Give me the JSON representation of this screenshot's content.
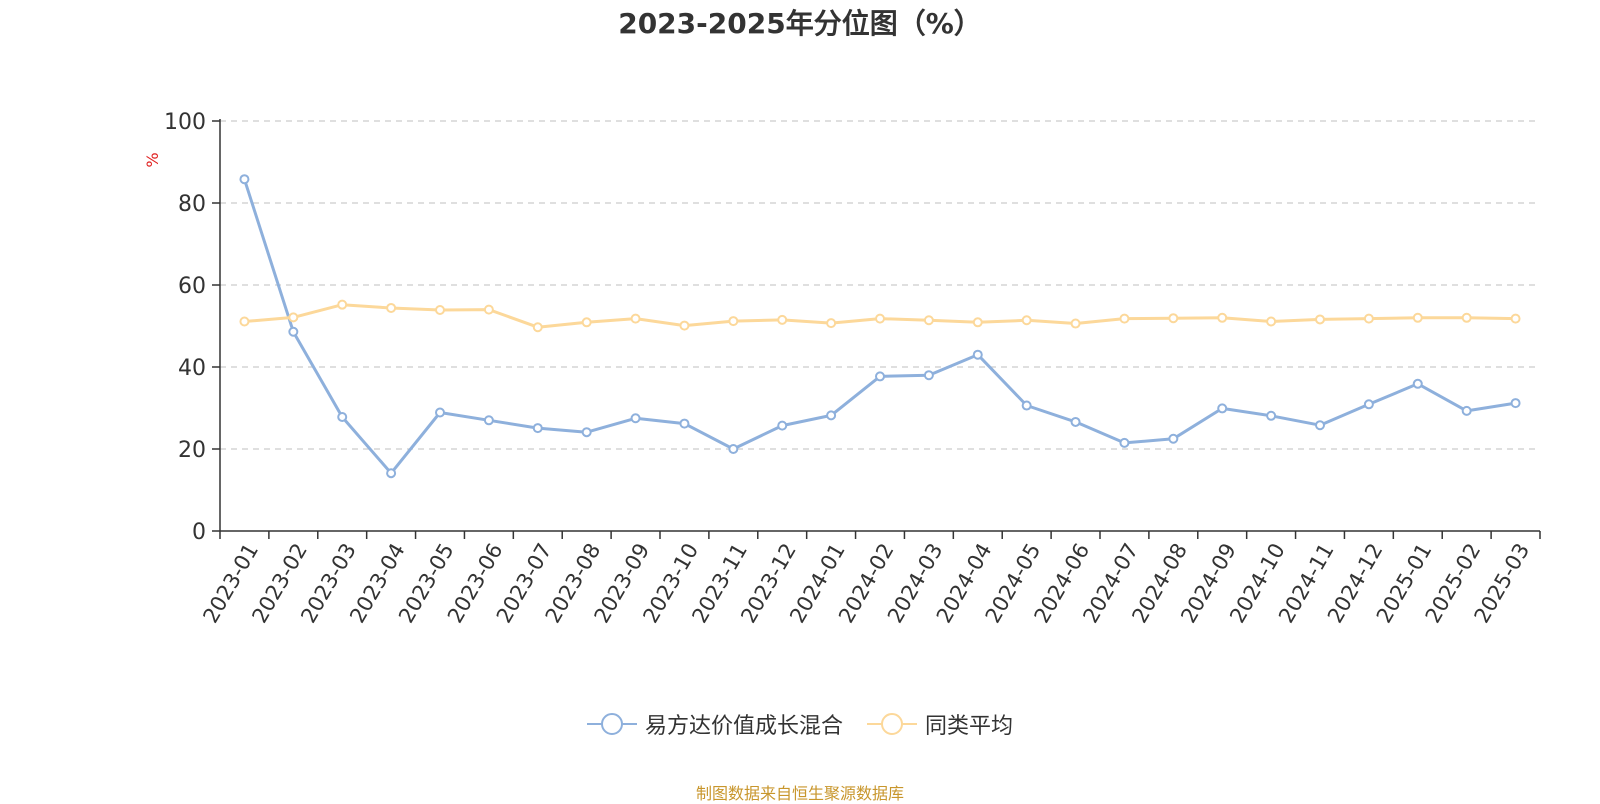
{
  "chart_data": {
    "type": "line",
    "title": "2023-2025年分位图（%）",
    "ylabel": "%",
    "ylim": [
      0,
      100
    ],
    "yticks": [
      0,
      20,
      40,
      60,
      80,
      100
    ],
    "grid": true,
    "legend_position": "bottom-center",
    "categories": [
      "2023-01",
      "2023-02",
      "2023-03",
      "2023-04",
      "2023-05",
      "2023-06",
      "2023-07",
      "2023-08",
      "2023-09",
      "2023-10",
      "2023-11",
      "2023-12",
      "2024-01",
      "2024-02",
      "2024-03",
      "2024-04",
      "2024-05",
      "2024-06",
      "2024-07",
      "2024-08",
      "2024-09",
      "2024-10",
      "2024-11",
      "2024-12",
      "2025-01",
      "2025-02",
      "2025-03"
    ],
    "series": [
      {
        "name": "易方达价值成长混合",
        "color": "#8eb0dc",
        "values": [
          85.8,
          48.6,
          27.8,
          14.1,
          28.9,
          27.0,
          25.1,
          24.1,
          27.5,
          26.2,
          20.0,
          25.7,
          28.2,
          37.7,
          38.0,
          43.0,
          30.6,
          26.6,
          21.5,
          22.5,
          29.9,
          28.1,
          25.8,
          30.9,
          35.9,
          29.3,
          31.2
        ]
      },
      {
        "name": "同类平均",
        "color": "#fcd89a",
        "values": [
          51.1,
          52.1,
          55.2,
          54.4,
          53.9,
          54.0,
          49.7,
          50.9,
          51.8,
          50.1,
          51.2,
          51.5,
          50.7,
          51.8,
          51.4,
          50.9,
          51.4,
          50.6,
          51.8,
          51.9,
          52.0,
          51.1,
          51.6,
          51.8,
          52.0,
          52.0,
          51.8
        ]
      }
    ]
  },
  "legend": {
    "items": [
      {
        "label": "易方达价值成长混合",
        "color": "#8eb0dc"
      },
      {
        "label": "同类平均",
        "color": "#fcd89a"
      }
    ]
  },
  "source": "制图数据来自恒生聚源数据库",
  "colors": {
    "axis": "#333333",
    "grid": "#cccccc",
    "ylabel": "#e02020"
  }
}
